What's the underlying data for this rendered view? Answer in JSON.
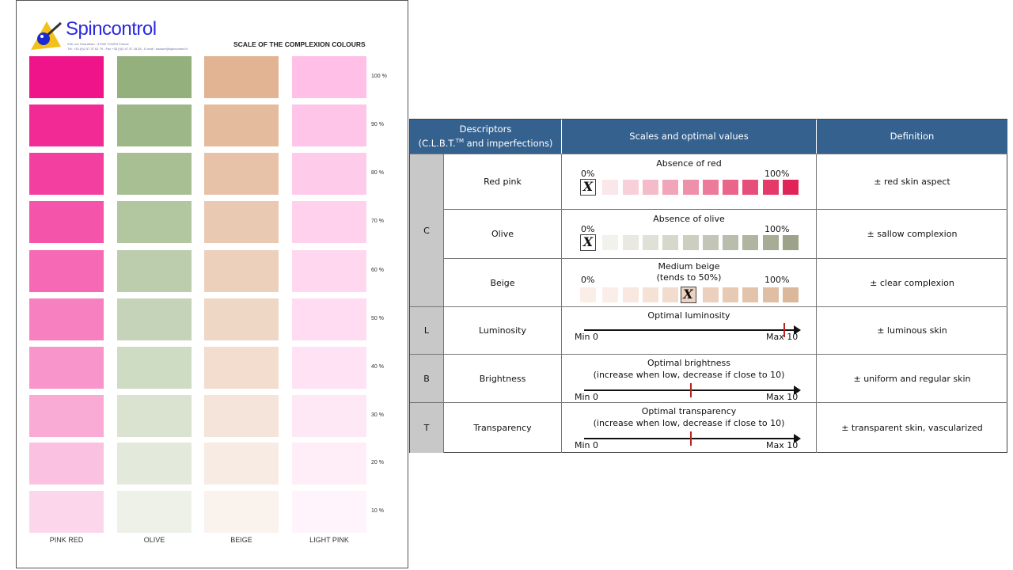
{
  "sheet": {
    "brand": "Spincontrol",
    "address_line1": "238, rue Giraudeau - 37000 TOURS France",
    "address_line2": "Tél. +33 (0)2 47 37 62 79 - Fax +33 (0)2 47 37 18 28 - E-mail : tousser@spincontrol.fr",
    "title": "SCALE OF THE COMPLEXION COLOURS",
    "levels": [
      "100 %",
      "90 %",
      "80 %",
      "70 %",
      "60 %",
      "50 %",
      "40 %",
      "30 %",
      "20 %",
      "10 %"
    ],
    "columns": [
      {
        "label": "PINK RED",
        "color": "#f0148a"
      },
      {
        "label": "OLIVE",
        "color": "#94b07c"
      },
      {
        "label": "BEIGE",
        "color": "#e2b494"
      },
      {
        "label": "LIGHT PINK",
        "color": "#ffbfe6"
      }
    ]
  },
  "table": {
    "headers": {
      "descriptors": "Descriptors",
      "descriptors_sub": "(C.L.B.T.",
      "tm": "TM",
      "descriptors_sub2": " and imperfections)",
      "scales": "Scales and optimal values",
      "definition": "Definition"
    },
    "rows": [
      {
        "group": "C",
        "name": "Red pink",
        "title": "Absence of red",
        "min": "0%",
        "max": "100%",
        "definition": "± red skin aspect",
        "type": "swatch",
        "from": "#fbe6ea",
        "to": "#e0245a",
        "selected": 0
      },
      {
        "group": "",
        "name": "Olive",
        "title": "Absence of olive",
        "min": "0%",
        "max": "100%",
        "definition": "± sallow complexion",
        "type": "swatch",
        "from": "#f2f2ec",
        "to": "#9da38a",
        "selected": 0
      },
      {
        "group": "",
        "name": "Beige",
        "title": "Medium beige",
        "title2": "(tends to 50%)",
        "min": "0%",
        "max": "100%",
        "definition": "± clear complexion",
        "type": "swatch",
        "from": "#fbeee8",
        "to": "#dcb89a",
        "selected": 5
      },
      {
        "group": "L",
        "name": "Luminosity",
        "title": "Optimal luminosity",
        "min": "Min 0",
        "max": "Max 10",
        "definition": "± luminous skin",
        "type": "axis",
        "optimal": 9.4
      },
      {
        "group": "B",
        "name": "Brightness",
        "title": "Optimal brightness",
        "title2": "(increase when low, decrease if close to 10)",
        "min": "Min 0",
        "max": "Max 10",
        "definition": "± uniform and regular skin",
        "type": "axis",
        "optimal": 5
      },
      {
        "group": "T",
        "name": "Transparency",
        "title": "Optimal transparency",
        "title2": "(increase when low, decrease if close to 10)",
        "min": "Min 0",
        "max": "Max 10",
        "definition": "± transparent skin, vascularized",
        "type": "axis",
        "optimal": 5
      }
    ],
    "mark_symbol": "X"
  }
}
